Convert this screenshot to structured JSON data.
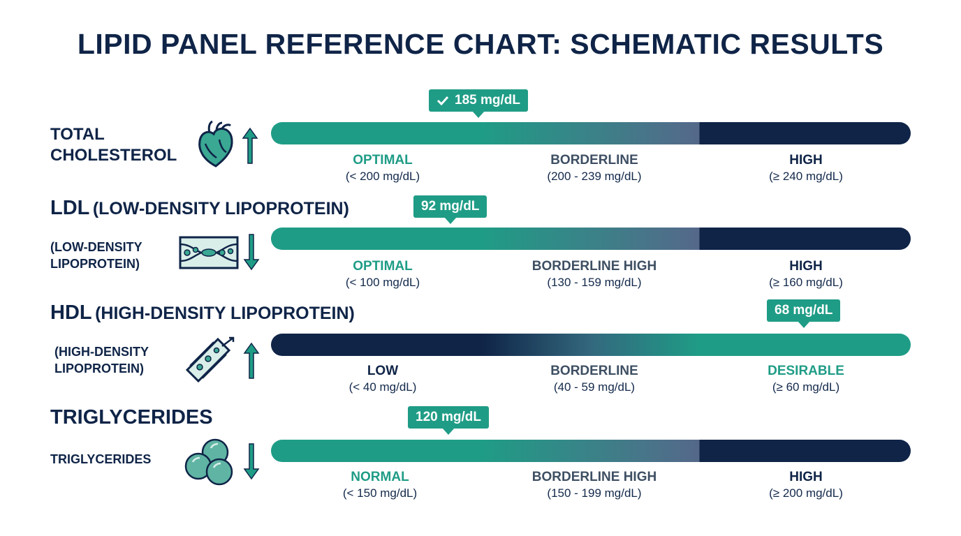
{
  "title": "LIPID PANEL REFERENCE CHART: SCHEMATIC RESULTS",
  "colors": {
    "teal": "#1f9c86",
    "navy": "#0f2447",
    "slate": "#3e4f63"
  },
  "rows": [
    {
      "title": "TOTAL CHOLESTEROL",
      "icon": "heart-icon",
      "arrow": "up",
      "value_label": "185 mg/dL",
      "value_check": true,
      "value": 185,
      "zones": [
        {
          "name": "OPTIMAL",
          "range": "(< 200 mg/dL)",
          "tone": "teal"
        },
        {
          "name": "BORDERLINE",
          "range": "(200 - 239 mg/dL)",
          "tone": "slate"
        },
        {
          "name": "HIGH",
          "range": "(≥ 240 mg/dL)",
          "tone": "navy"
        }
      ]
    },
    {
      "title_abbr": "LDL",
      "title_full": "(LOW-DENSITY LIPOPROTEIN)",
      "side_label": "(LOW-DENSITY LIPOPROTEIN)",
      "icon": "clogged-artery-icon",
      "arrow": "down",
      "value_label": "92 mg/dL",
      "value": 92,
      "zones": [
        {
          "name": "OPTIMAL",
          "range": "(< 100 mg/dL)",
          "tone": "teal"
        },
        {
          "name": "BORDERLINE HIGH",
          "range": "(130 - 159 mg/dL)",
          "tone": "slate"
        },
        {
          "name": "HIGH",
          "range": "(≥ 160 mg/dL)",
          "tone": "navy"
        }
      ]
    },
    {
      "title_abbr": "HDL",
      "title_full": "(HIGH-DENSITY LIPOPROTEIN)",
      "side_label": "(HIGH-DENSITY LIPOPROTEIN)",
      "icon": "clear-artery-icon",
      "arrow": "up",
      "value_label": "68 mg/dL",
      "value": 68,
      "zones": [
        {
          "name": "LOW",
          "range": "(< 40 mg/dL)",
          "tone": "navy"
        },
        {
          "name": "BORDERLINE",
          "range": "(40 - 59 mg/dL)",
          "tone": "slate"
        },
        {
          "name": "DESIRABLE",
          "range": "(≥ 60 mg/dL)",
          "tone": "teal"
        }
      ]
    },
    {
      "title": "TRIGLYCERIDES",
      "side_label": "TRIGLYCERIDES",
      "icon": "fat-droplets-icon",
      "arrow": "down",
      "value_label": "120 mg/dL",
      "value": 120,
      "zones": [
        {
          "name": "NORMAL",
          "range": "(< 150 mg/dL)",
          "tone": "teal"
        },
        {
          "name": "BORDERLINE HIGH",
          "range": "(150 - 199 mg/dL)",
          "tone": "slate"
        },
        {
          "name": "HIGH",
          "range": "(≥ 200 mg/dL)",
          "tone": "navy"
        }
      ]
    }
  ]
}
